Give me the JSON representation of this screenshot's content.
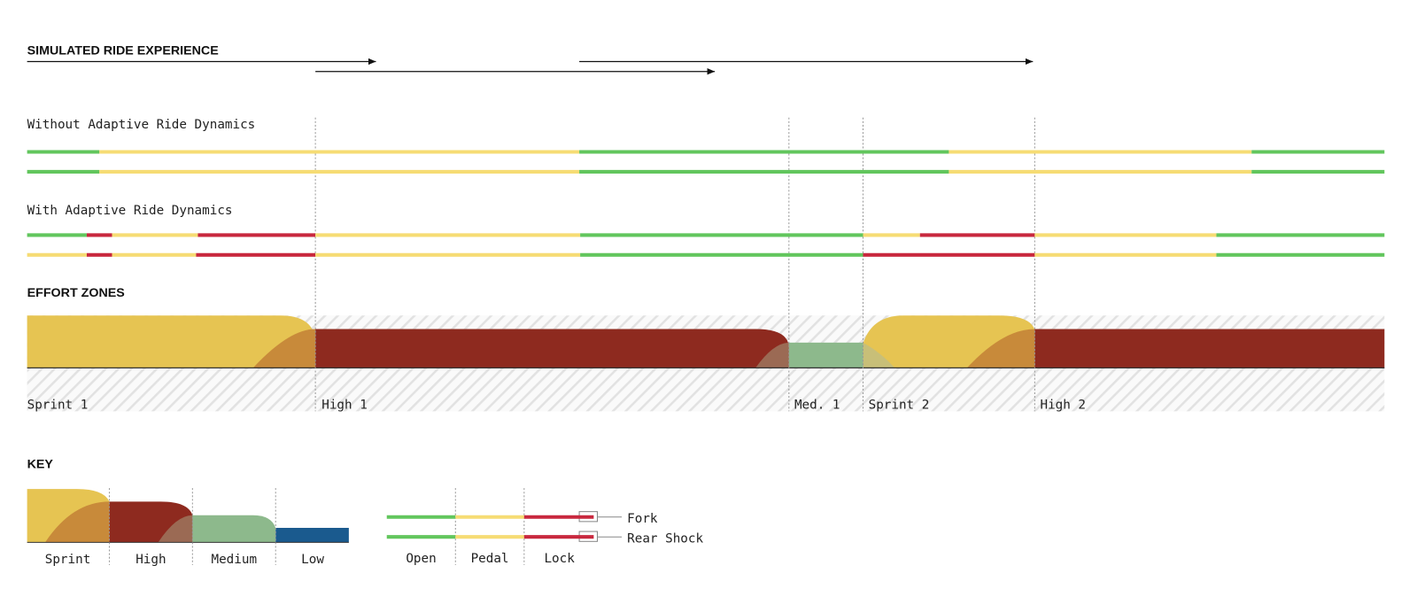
{
  "header": {
    "title": "SIMULATED RIDE EXPERIENCE"
  },
  "rows": {
    "without": "Without Adaptive Ride Dynamics",
    "with": "With Adaptive Ride Dynamics"
  },
  "effort_zones": {
    "title": "EFFORT ZONES",
    "zones": [
      "Sprint 1",
      "High 1",
      "Med. 1",
      "Sprint 2",
      "High 2"
    ]
  },
  "key": {
    "title": "KEY",
    "effort": [
      "Sprint",
      "High",
      "Medium",
      "Low"
    ],
    "settings": [
      "Open",
      "Pedal",
      "Lock"
    ],
    "components": [
      "Fork",
      "Rear Shock"
    ]
  }
}
